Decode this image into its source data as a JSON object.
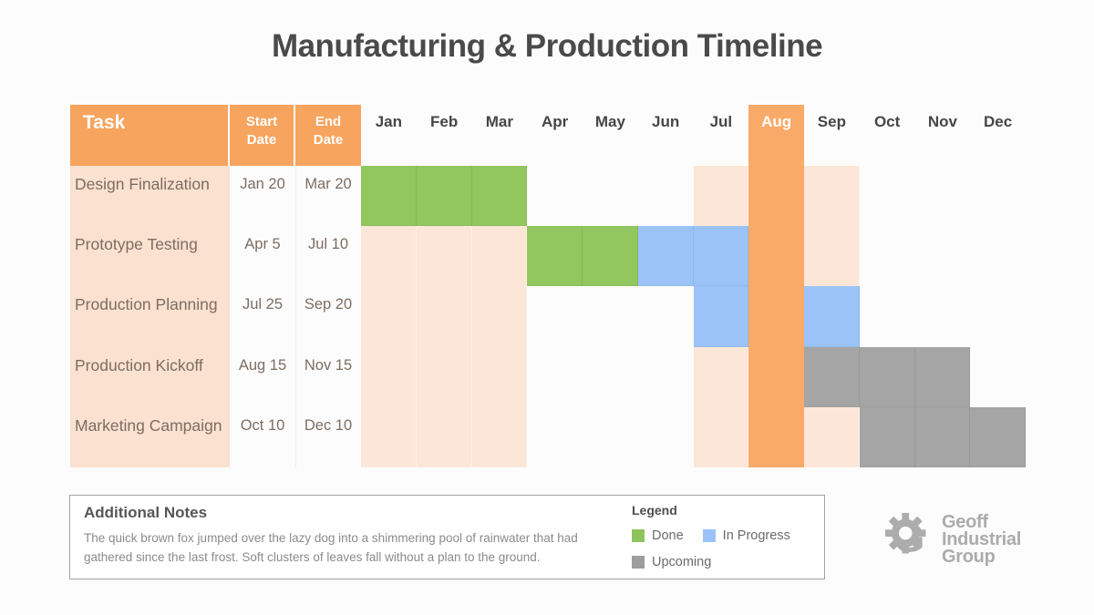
{
  "title": "Manufacturing & Production Timeline",
  "table": {
    "task_header": "Task",
    "start_header": "Start Date",
    "end_header": "End Date"
  },
  "months": [
    "Jan",
    "Feb",
    "Mar",
    "Apr",
    "May",
    "Jun",
    "Jul",
    "Aug",
    "Sep",
    "Oct",
    "Nov",
    "Dec"
  ],
  "highlight_month": "Aug",
  "tasks": [
    {
      "name": "Design Finalization",
      "start": "Jan 20",
      "end": "Mar 20",
      "cells": [
        "done",
        "done",
        "done",
        "empty",
        "empty",
        "empty",
        "band",
        "highlight",
        "band",
        "empty",
        "empty",
        "empty"
      ]
    },
    {
      "name": "Prototype Testing",
      "start": "Apr 5",
      "end": "Jul 10",
      "cells": [
        "band",
        "band",
        "band",
        "done",
        "done",
        "progress",
        "progress",
        "highlight",
        "band",
        "empty",
        "empty",
        "empty"
      ]
    },
    {
      "name": "Production Planning",
      "start": "Jul 25",
      "end": "Sep 20",
      "cells": [
        "band",
        "band",
        "band",
        "empty",
        "empty",
        "empty",
        "progress",
        "highlight",
        "progress",
        "empty",
        "empty",
        "empty"
      ]
    },
    {
      "name": "Production Kickoff",
      "start": "Aug 15",
      "end": "Nov 15",
      "cells": [
        "band",
        "band",
        "band",
        "empty",
        "empty",
        "empty",
        "band",
        "highlight",
        "upcoming",
        "upcoming",
        "upcoming",
        "empty"
      ]
    },
    {
      "name": "Marketing Campaign",
      "start": "Oct 10",
      "end": "Dec 10",
      "cells": [
        "band",
        "band",
        "band",
        "empty",
        "empty",
        "empty",
        "band",
        "highlight",
        "band",
        "upcoming",
        "upcoming",
        "upcoming"
      ]
    }
  ],
  "notes": {
    "title": "Additional Notes",
    "body": "The quick brown fox jumped over the lazy dog into a shimmering pool of rainwater that had gathered since the last frost. Soft clusters of leaves fall without a plan to the ground."
  },
  "legend": {
    "title": "Legend",
    "items": [
      {
        "label": "Done",
        "color": "#8fc45c"
      },
      {
        "label": "In Progress",
        "color": "#9bc3f8"
      },
      {
        "label": "Upcoming",
        "color": "#9d9d9d"
      }
    ]
  },
  "logo": {
    "line1": "Geoff",
    "line2": "Industrial",
    "line3": "Group"
  },
  "colors": {
    "header_orange": "#f7a45e",
    "highlight_orange": "#f9aa68",
    "band_peach": "#fce6d7",
    "task_column_peach": "#fbe1cf",
    "done_green": "#92c65e",
    "progress_blue": "#9bc3f8",
    "upcoming_gray": "#a5a5a5"
  },
  "chart_data": {
    "type": "bar",
    "subtype": "gantt-timeline",
    "title": "Manufacturing & Production Timeline",
    "x_categories": [
      "Jan",
      "Feb",
      "Mar",
      "Apr",
      "May",
      "Jun",
      "Jul",
      "Aug",
      "Sep",
      "Oct",
      "Nov",
      "Dec"
    ],
    "highlighted_month": "Aug",
    "legend_entries": [
      "Done",
      "In Progress",
      "Upcoming"
    ],
    "legend_position": "bottom-center",
    "series": [
      {
        "name": "Design Finalization",
        "start": "Jan 20",
        "end": "Mar 20",
        "months_spanned": [
          "Jan",
          "Feb",
          "Mar"
        ],
        "status": "Done"
      },
      {
        "name": "Prototype Testing",
        "start": "Apr 5",
        "end": "Jul 10",
        "months_spanned": [
          "Apr",
          "May",
          "Jun",
          "Jul"
        ],
        "status_by_month": {
          "Apr": "Done",
          "May": "Done",
          "Jun": "In Progress",
          "Jul": "In Progress"
        }
      },
      {
        "name": "Production Planning",
        "start": "Jul 25",
        "end": "Sep 20",
        "months_spanned": [
          "Jul",
          "Aug",
          "Sep"
        ],
        "status": "In Progress"
      },
      {
        "name": "Production Kickoff",
        "start": "Aug 15",
        "end": "Nov 15",
        "months_spanned": [
          "Aug",
          "Sep",
          "Oct",
          "Nov"
        ],
        "status": "Upcoming"
      },
      {
        "name": "Marketing Campaign",
        "start": "Oct 10",
        "end": "Dec 10",
        "months_spanned": [
          "Oct",
          "Nov",
          "Dec"
        ],
        "status": "Upcoming"
      }
    ]
  }
}
